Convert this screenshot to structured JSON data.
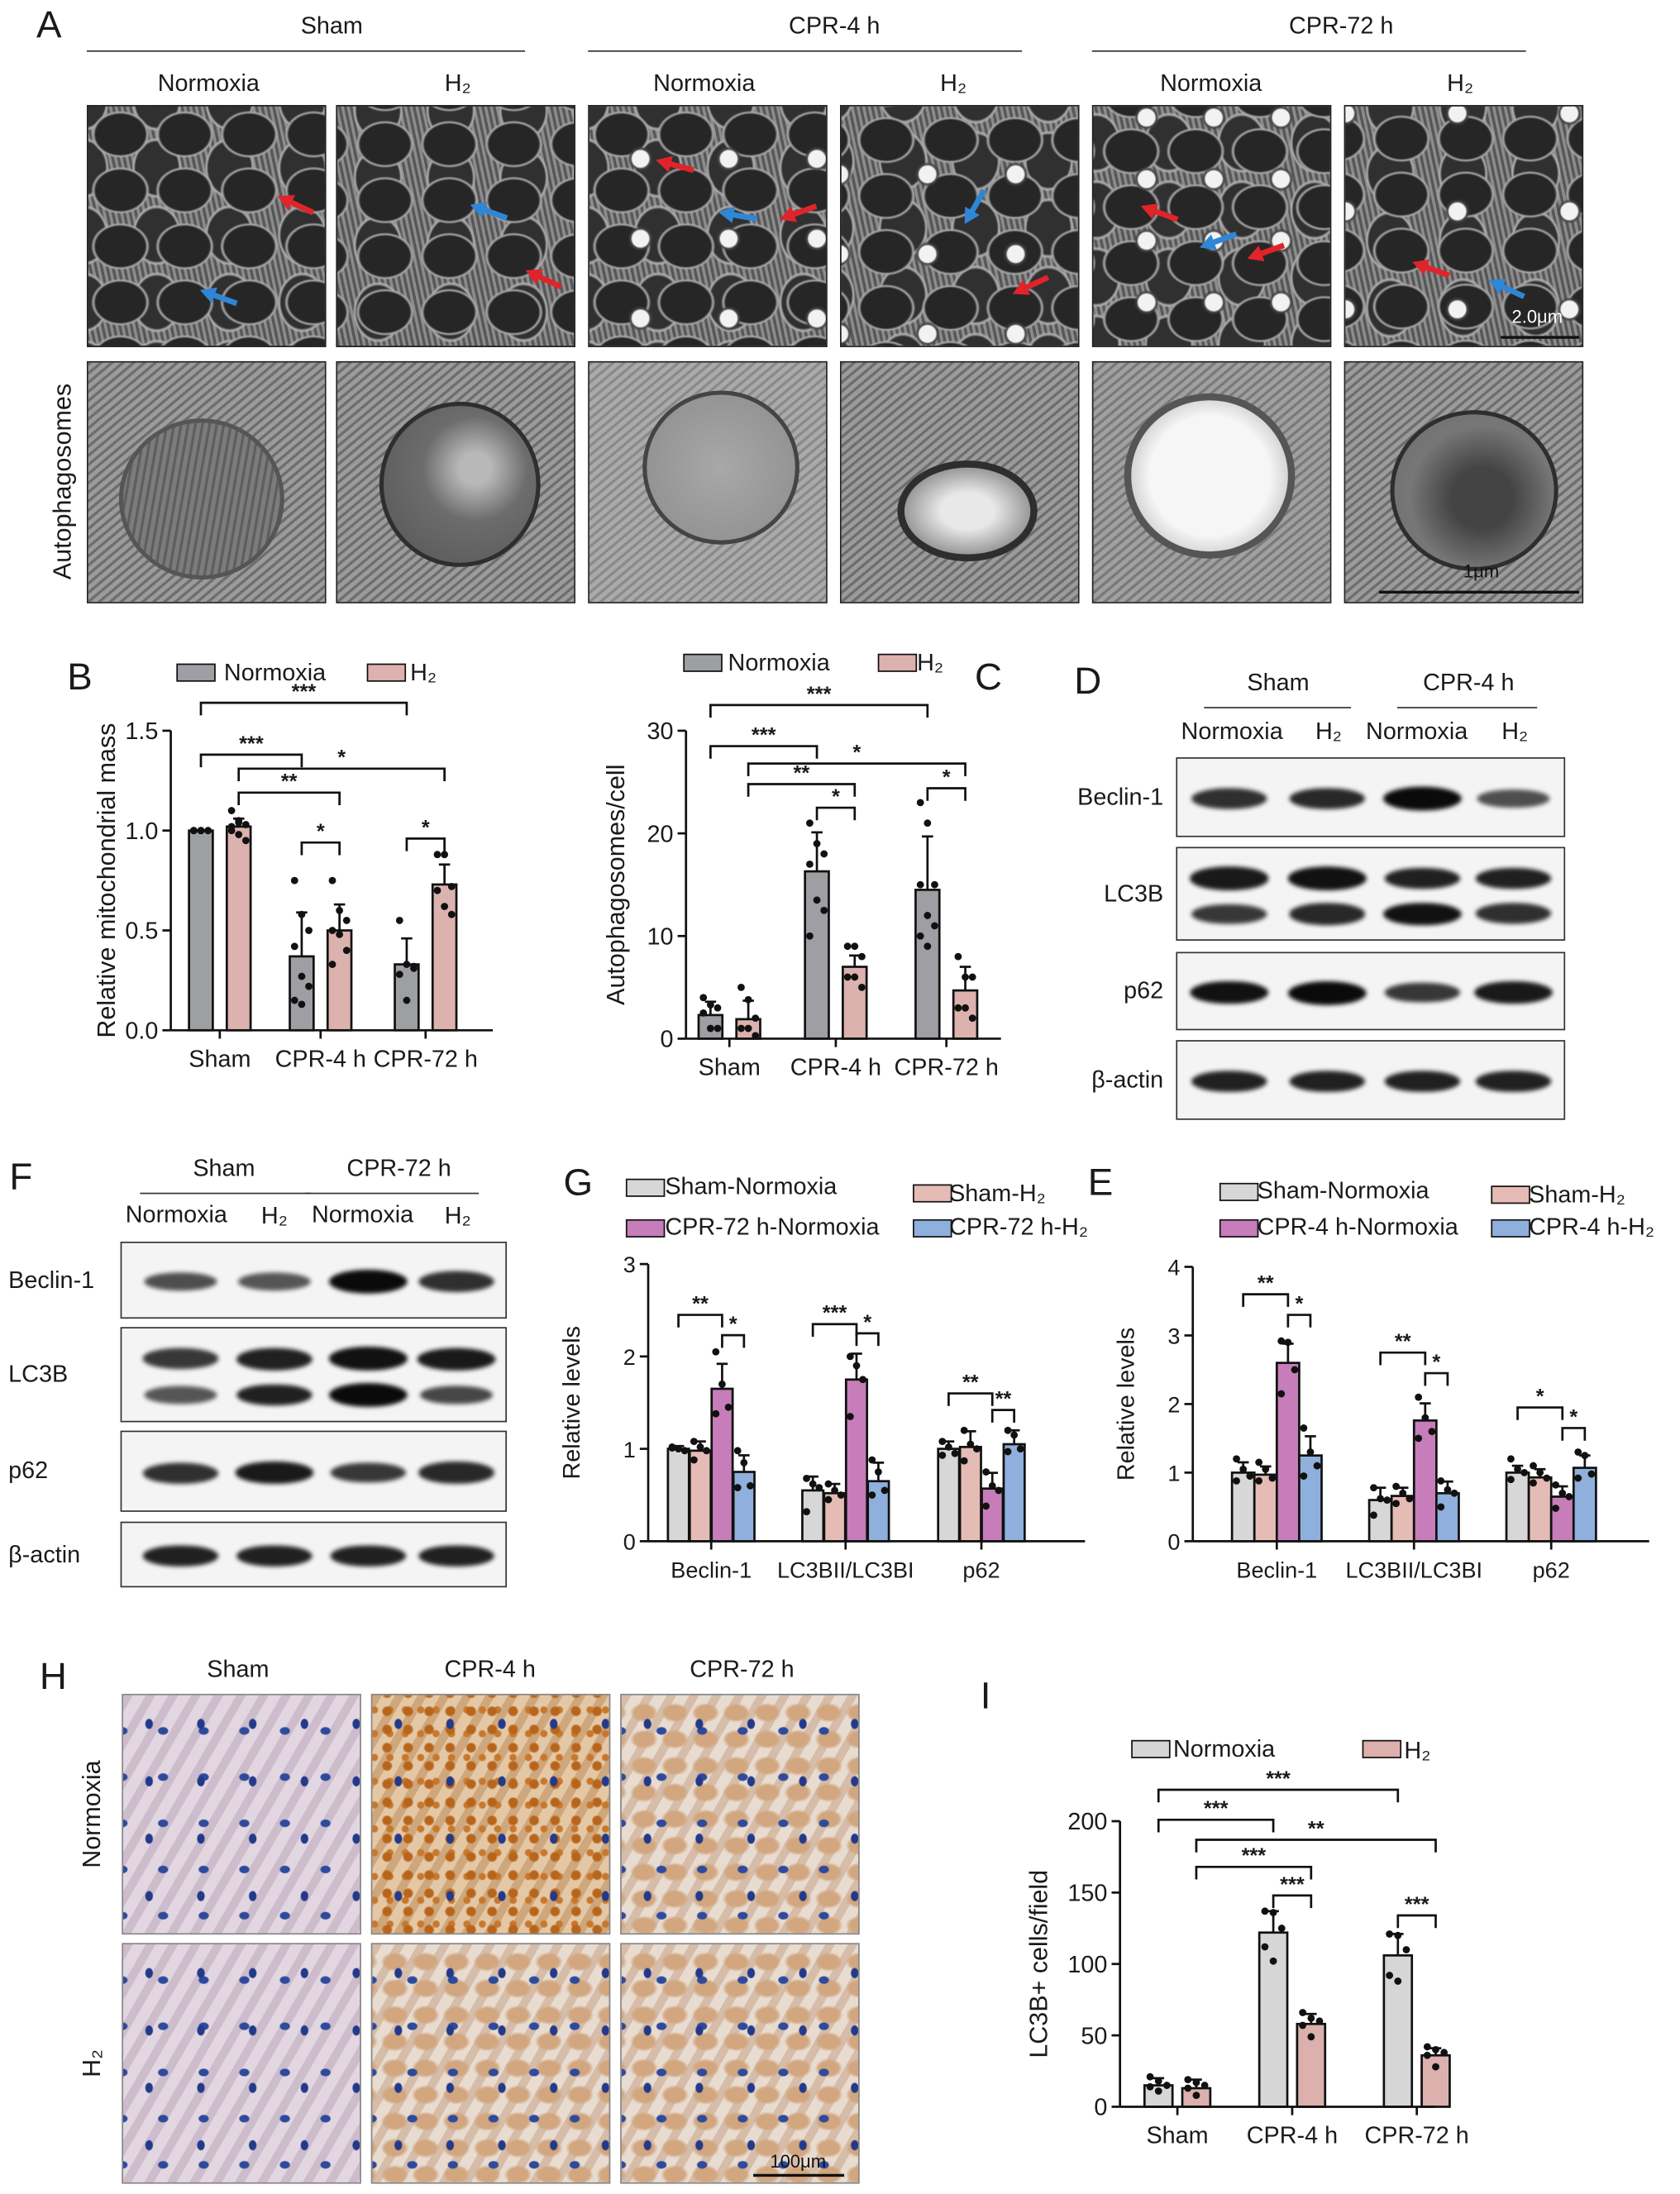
{
  "panel_labels": {
    "A": "A",
    "B": "B",
    "C": "C",
    "D": "D",
    "E": "E",
    "F": "F",
    "G": "G",
    "H": "H",
    "I": "I"
  },
  "panelA": {
    "groups": [
      "Sham",
      "CPR-4 h",
      "CPR-72 h"
    ],
    "conditions": [
      "Normoxia",
      "H₂",
      "Normoxia",
      "H₂",
      "Normoxia",
      "H₂"
    ],
    "row_label": "Autophagosomes",
    "scale_bar_top": "2.0μm",
    "scale_bar_bottom": "1μm",
    "arrow_colors": {
      "red": "#e0242a",
      "blue": "#2f86d6"
    }
  },
  "blot_D": {
    "groups": [
      "Sham",
      "CPR-4 h"
    ],
    "lanes": [
      "Normoxia",
      "H₂",
      "Normoxia",
      "H₂"
    ],
    "rows": [
      {
        "label": "Beclin-1",
        "bands": [
          [
            0.75,
            0.8,
            1.0,
            0.55
          ]
        ]
      },
      {
        "label": "LC3B",
        "bands": [
          [
            0.9,
            0.95,
            0.85,
            0.85
          ],
          [
            0.7,
            0.8,
            0.95,
            0.75
          ]
        ]
      },
      {
        "label": "p62",
        "bands": [
          [
            0.95,
            1.0,
            0.7,
            0.9
          ]
        ]
      },
      {
        "label": "β-actin",
        "bands": [
          [
            0.85,
            0.85,
            0.85,
            0.85
          ]
        ]
      }
    ]
  },
  "blot_F": {
    "groups": [
      "Sham",
      "CPR-72 h"
    ],
    "lanes": [
      "Normoxia",
      "H₂",
      "Normoxia",
      "H₂"
    ],
    "rows": [
      {
        "label": "Beclin-1",
        "bands": [
          [
            0.55,
            0.5,
            1.0,
            0.75
          ]
        ]
      },
      {
        "label": "LC3B",
        "bands": [
          [
            0.7,
            0.85,
            0.95,
            0.9
          ],
          [
            0.5,
            0.85,
            1.0,
            0.6
          ]
        ]
      },
      {
        "label": "p62",
        "bands": [
          [
            0.75,
            0.9,
            0.7,
            0.8
          ]
        ]
      },
      {
        "label": "β-actin",
        "bands": [
          [
            0.85,
            0.85,
            0.85,
            0.85
          ]
        ]
      }
    ]
  },
  "panelH": {
    "columns": [
      "Sham",
      "CPR-4 h",
      "CPR-72 h"
    ],
    "rows": [
      "Normoxia",
      "H₂"
    ],
    "scale_bar": "100μm"
  },
  "chart_data": [
    {
      "panel": "B",
      "type": "bar",
      "title": "",
      "xlabel": "",
      "ylabel": "Relative mitochondrial mass",
      "ylim": [
        0,
        1.5
      ],
      "yticks": [
        0,
        0.5,
        1.0,
        1.5
      ],
      "ytick_labels": [
        "0.0",
        "0.5",
        "1.0",
        "1.5"
      ],
      "categories": [
        "Sham",
        "CPR-4 h",
        "CPR-72 h"
      ],
      "legend": "top",
      "series": [
        {
          "name": "Normoxia",
          "color": "#9e9fa3",
          "values": [
            1.0,
            0.37,
            0.33
          ],
          "sd": [
            0,
            0.22,
            0.13
          ],
          "points": [
            [
              1,
              1,
              1,
              1,
              1,
              1,
              1,
              1
            ],
            [
              0.75,
              0.58,
              0.5,
              0.42,
              0.27,
              0.22,
              0.15,
              0.13
            ],
            [
              0.55,
              0.33,
              0.31,
              0.28,
              0.15,
              0.32
            ]
          ]
        },
        {
          "name": "H₂",
          "color": "#dbb2ae",
          "values": [
            1.02,
            0.5,
            0.73
          ],
          "sd": [
            0.04,
            0.13,
            0.1
          ],
          "points": [
            [
              1.1,
              1.05,
              1.03,
              1.0,
              0.98,
              0.95,
              1.02,
              1.04
            ],
            [
              0.75,
              0.6,
              0.55,
              0.5,
              0.48,
              0.4,
              0.33
            ],
            [
              0.88,
              0.88,
              0.72,
              0.7,
              0.62,
              0.58
            ]
          ]
        }
      ],
      "significance": [
        {
          "from": [
            0,
            0
          ],
          "to": [
            2,
            0
          ],
          "y": 1.64,
          "label": "***"
        },
        {
          "from": [
            0,
            0
          ],
          "to": [
            1,
            0
          ],
          "y": 1.38,
          "label": "***"
        },
        {
          "from": [
            0,
            1
          ],
          "to": [
            2,
            1
          ],
          "y": 1.31,
          "label": "*"
        },
        {
          "from": [
            0,
            1
          ],
          "to": [
            1,
            1
          ],
          "y": 1.19,
          "label": "**"
        },
        {
          "from": [
            1,
            0
          ],
          "to": [
            1,
            1
          ],
          "y": 0.94,
          "label": "*"
        },
        {
          "from": [
            2,
            0
          ],
          "to": [
            2,
            1
          ],
          "y": 0.96,
          "label": "*"
        }
      ]
    },
    {
      "panel": "C",
      "type": "bar",
      "title": "",
      "xlabel": "",
      "ylabel": "Autophagosomes/cell",
      "ylim": [
        0,
        30
      ],
      "yticks": [
        0,
        10,
        20,
        30
      ],
      "ytick_labels": [
        "0",
        "10",
        "20",
        "30"
      ],
      "categories": [
        "Sham",
        "CPR-4 h",
        "CPR-72 h"
      ],
      "legend": "top",
      "series": [
        {
          "name": "Normoxia",
          "color": "#9e9fa3",
          "values": [
            2.3,
            16.3,
            14.5
          ],
          "sd": [
            1.3,
            3.8,
            5.2
          ],
          "points": [
            [
              4,
              3.3,
              3,
              2.5,
              1,
              1
            ],
            [
              21,
              19,
              18,
              17,
              13.5,
              12.5,
              10
            ],
            [
              23,
              21,
              15,
              15,
              12,
              11,
              10,
              9
            ]
          ]
        },
        {
          "name": "H₂",
          "color": "#dbb2ae",
          "values": [
            1.9,
            7.0,
            4.7
          ],
          "sd": [
            1.8,
            1.1,
            2.3
          ],
          "points": [
            [
              5,
              3.8,
              2,
              1,
              1,
              0.3
            ],
            [
              9,
              9,
              8,
              6,
              6,
              5
            ],
            [
              8,
              6,
              6,
              3,
              3,
              2
            ]
          ]
        }
      ],
      "significance": [
        {
          "from": [
            0,
            0
          ],
          "to": [
            2,
            0
          ],
          "y": 32.5,
          "label": "***"
        },
        {
          "from": [
            0,
            0
          ],
          "to": [
            1,
            0
          ],
          "y": 28.5,
          "label": "***"
        },
        {
          "from": [
            0,
            1
          ],
          "to": [
            2,
            1
          ],
          "y": 26.8,
          "label": "*"
        },
        {
          "from": [
            0,
            1
          ],
          "to": [
            1,
            1
          ],
          "y": 24.8,
          "label": "**"
        },
        {
          "from": [
            1,
            0
          ],
          "to": [
            1,
            1
          ],
          "y": 22.5,
          "label": "*"
        },
        {
          "from": [
            2,
            0
          ],
          "to": [
            2,
            1
          ],
          "y": 24.4,
          "label": "*"
        }
      ]
    },
    {
      "panel": "G",
      "type": "bar",
      "title": "",
      "xlabel": "",
      "ylabel": "Relative levels",
      "ylim": [
        0,
        3
      ],
      "yticks": [
        0,
        1,
        2,
        3
      ],
      "ytick_labels": [
        "0",
        "1",
        "2",
        "3"
      ],
      "categories": [
        "Beclin-1",
        "LC3BII/LC3BI",
        "p62"
      ],
      "legend": "top",
      "series": [
        {
          "name": "Sham-Normoxia",
          "color": "#d7d7d7",
          "values": [
            1.0,
            0.55,
            1.0
          ],
          "sd": [
            0.03,
            0.15,
            0.08
          ],
          "points": [
            [
              1.02,
              1.0,
              0.98,
              1.01
            ],
            [
              0.68,
              0.62,
              0.58,
              0.32
            ],
            [
              1.08,
              1.02,
              0.95,
              0.93
            ]
          ]
        },
        {
          "name": "Sham-H₂",
          "color": "#e5bcb5",
          "values": [
            0.98,
            0.52,
            1.02
          ],
          "sd": [
            0.1,
            0.1,
            0.17
          ],
          "points": [
            [
              1.08,
              1.02,
              0.98,
              0.88
            ],
            [
              0.62,
              0.55,
              0.5,
              0.45
            ],
            [
              1.2,
              1.05,
              1.0,
              0.87
            ]
          ]
        },
        {
          "name": "CPR-72 h-Normoxia",
          "color": "#c67db9",
          "values": [
            1.65,
            1.75,
            0.57
          ],
          "sd": [
            0.27,
            0.28,
            0.17
          ],
          "points": [
            [
              2.05,
              1.7,
              1.45,
              1.38
            ],
            [
              2.0,
              1.9,
              1.75,
              1.35
            ],
            [
              0.75,
              0.6,
              0.55,
              0.38
            ]
          ]
        },
        {
          "name": "CPR-72 h-H₂",
          "color": "#8fb0dc",
          "values": [
            0.75,
            0.65,
            1.05
          ],
          "sd": [
            0.18,
            0.2,
            0.15
          ],
          "points": [
            [
              0.98,
              0.85,
              0.6,
              0.58
            ],
            [
              0.88,
              0.75,
              0.55,
              0.5
            ],
            [
              1.2,
              1.15,
              1.0,
              0.97
            ]
          ]
        }
      ],
      "significance": [
        {
          "from": [
            0,
            0
          ],
          "to": [
            0,
            2
          ],
          "y": 2.45,
          "label": "**"
        },
        {
          "from": [
            0,
            2
          ],
          "to": [
            0,
            3
          ],
          "y": 2.23,
          "label": "*"
        },
        {
          "from": [
            1,
            0
          ],
          "to": [
            1,
            2
          ],
          "y": 2.35,
          "label": "***"
        },
        {
          "from": [
            1,
            2
          ],
          "to": [
            1,
            3
          ],
          "y": 2.25,
          "label": "*"
        },
        {
          "from": [
            2,
            0
          ],
          "to": [
            2,
            2
          ],
          "y": 1.6,
          "label": "**"
        },
        {
          "from": [
            2,
            2
          ],
          "to": [
            2,
            3
          ],
          "y": 1.42,
          "label": "**"
        }
      ]
    },
    {
      "panel": "E",
      "type": "bar",
      "title": "",
      "xlabel": "",
      "ylabel": "Relative levels",
      "ylim": [
        0,
        4
      ],
      "yticks": [
        0,
        1,
        2,
        3,
        4
      ],
      "ytick_labels": [
        "0",
        "1",
        "2",
        "3",
        "4"
      ],
      "categories": [
        "Beclin-1",
        "LC3BII/LC3BI",
        "p62"
      ],
      "legend": "top",
      "series": [
        {
          "name": "Sham-Normoxia",
          "color": "#d7d7d7",
          "values": [
            1.0,
            0.6,
            1.0
          ],
          "sd": [
            0.15,
            0.18,
            0.1
          ],
          "points": [
            [
              1.2,
              1.05,
              0.95,
              0.88
            ],
            [
              0.78,
              0.62,
              0.6,
              0.38
            ],
            [
              1.2,
              1.05,
              1.0,
              0.9
            ]
          ]
        },
        {
          "name": "Sham-H₂",
          "color": "#e5bcb5",
          "values": [
            0.97,
            0.66,
            0.93
          ],
          "sd": [
            0.12,
            0.12,
            0.12
          ],
          "points": [
            [
              1.15,
              1.05,
              0.92,
              0.88
            ],
            [
              0.8,
              0.7,
              0.62,
              0.55
            ],
            [
              1.1,
              1.0,
              0.92,
              0.85
            ]
          ]
        },
        {
          "name": "CPR-4 h-Normoxia",
          "color": "#c67db9",
          "values": [
            2.6,
            1.76,
            0.65
          ],
          "sd": [
            0.28,
            0.25,
            0.15
          ],
          "points": [
            [
              2.92,
              2.9,
              2.5,
              2.15
            ],
            [
              2.1,
              1.8,
              1.6,
              1.5
            ],
            [
              0.82,
              0.7,
              0.65,
              0.48
            ]
          ]
        },
        {
          "name": "CPR-4 h-H₂",
          "color": "#8fb0dc",
          "values": [
            1.25,
            0.7,
            1.07
          ],
          "sd": [
            0.28,
            0.17,
            0.18
          ],
          "points": [
            [
              1.65,
              1.3,
              1.1,
              0.95
            ],
            [
              0.88,
              0.75,
              0.7,
              0.5
            ],
            [
              1.3,
              1.25,
              0.98,
              0.92
            ]
          ]
        }
      ],
      "significance": [
        {
          "from": [
            0,
            0
          ],
          "to": [
            0,
            2
          ],
          "y": 3.6,
          "label": "**"
        },
        {
          "from": [
            0,
            2
          ],
          "to": [
            0,
            3
          ],
          "y": 3.3,
          "label": "*"
        },
        {
          "from": [
            1,
            0
          ],
          "to": [
            1,
            2
          ],
          "y": 2.75,
          "label": "**"
        },
        {
          "from": [
            1,
            2
          ],
          "to": [
            1,
            3
          ],
          "y": 2.45,
          "label": "*"
        },
        {
          "from": [
            2,
            0
          ],
          "to": [
            2,
            2
          ],
          "y": 1.95,
          "label": "*"
        },
        {
          "from": [
            2,
            2
          ],
          "to": [
            2,
            3
          ],
          "y": 1.65,
          "label": "*"
        }
      ]
    },
    {
      "panel": "I",
      "type": "bar",
      "title": "",
      "xlabel": "",
      "ylabel": "LC3B+ cells/field",
      "ylim": [
        0,
        200
      ],
      "yticks": [
        0,
        50,
        100,
        150,
        200
      ],
      "ytick_labels": [
        "0",
        "50",
        "100",
        "150",
        "200"
      ],
      "categories": [
        "Sham",
        "CPR-4 h",
        "CPR-72 h"
      ],
      "legend": "top",
      "series": [
        {
          "name": "Normoxia",
          "color": "#d6d6d6",
          "values": [
            15,
            122,
            106
          ],
          "sd": [
            5,
            15,
            15
          ],
          "points": [
            [
              21,
              18,
              15,
              14,
              11
            ],
            [
              137,
              136,
              125,
              112,
              102
            ],
            [
              121,
              120,
              110,
              92,
              88
            ]
          ]
        },
        {
          "name": "H₂",
          "color": "#dcb0ac",
          "values": [
            13,
            58,
            36
          ],
          "sd": [
            6,
            7,
            5
          ],
          "points": [
            [
              19,
              17,
              15,
              13,
              8
            ],
            [
              66,
              62,
              60,
              57,
              49
            ],
            [
              42,
              40,
              38,
              36,
              28
            ]
          ]
        }
      ],
      "significance": [
        {
          "from": [
            0,
            0
          ],
          "to": [
            2,
            0
          ],
          "y": 222,
          "label": "***"
        },
        {
          "from": [
            0,
            0
          ],
          "to": [
            1,
            0
          ],
          "y": 201,
          "label": "***"
        },
        {
          "from": [
            0,
            1
          ],
          "to": [
            2,
            1
          ],
          "y": 187,
          "label": "**"
        },
        {
          "from": [
            0,
            1
          ],
          "to": [
            1,
            1
          ],
          "y": 168,
          "label": "***"
        },
        {
          "from": [
            1,
            0
          ],
          "to": [
            1,
            1
          ],
          "y": 148,
          "label": "***"
        },
        {
          "from": [
            2,
            0
          ],
          "to": [
            2,
            1
          ],
          "y": 134,
          "label": "***"
        }
      ]
    }
  ]
}
